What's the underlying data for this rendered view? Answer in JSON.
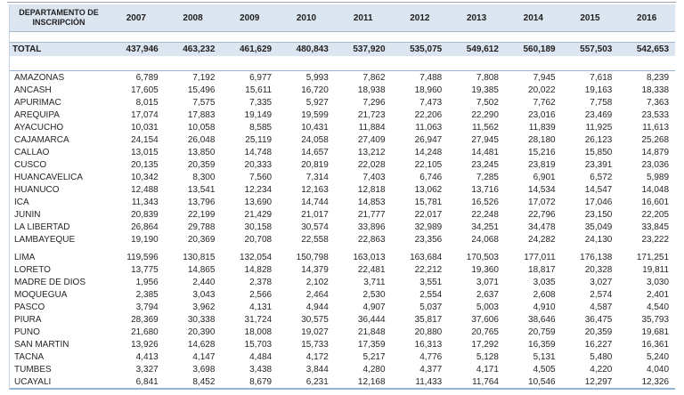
{
  "chart_data": {
    "type": "table",
    "row_header_label": "DEPARTAMENTO DE INSCRIPCIÓN",
    "columns": [
      "2007",
      "2008",
      "2009",
      "2010",
      "2011",
      "2012",
      "2013",
      "2014",
      "2015",
      "2016"
    ],
    "total": {
      "label": "TOTAL",
      "values": [
        "437,946",
        "463,232",
        "461,629",
        "480,843",
        "537,920",
        "535,075",
        "549,612",
        "560,189",
        "557,503",
        "542,653"
      ]
    },
    "rows": [
      {
        "name": "AMAZONAS",
        "values": [
          "6,789",
          "7,192",
          "6,977",
          "5,993",
          "7,862",
          "7,488",
          "7,808",
          "7,945",
          "7,618",
          "8,239"
        ]
      },
      {
        "name": "ÁNCASH",
        "values": [
          "17,605",
          "15,496",
          "15,611",
          "16,720",
          "18,938",
          "18,960",
          "19,385",
          "20,022",
          "19,163",
          "18,338"
        ]
      },
      {
        "name": "APURÍMAC",
        "values": [
          "8,015",
          "7,575",
          "7,335",
          "5,927",
          "7,296",
          "7,473",
          "7,502",
          "7,762",
          "7,758",
          "7,363"
        ]
      },
      {
        "name": "AREQUIPA",
        "values": [
          "17,074",
          "17,883",
          "19,149",
          "19,599",
          "21,723",
          "22,206",
          "22,290",
          "23,016",
          "23,469",
          "23,533"
        ]
      },
      {
        "name": "AYACUCHO",
        "values": [
          "10,031",
          "10,058",
          "8,585",
          "10,431",
          "11,884",
          "11,063",
          "11,562",
          "11,839",
          "11,925",
          "11,613"
        ]
      },
      {
        "name": "CAJAMARCA",
        "values": [
          "24,154",
          "26,048",
          "25,119",
          "24,058",
          "27,409",
          "26,947",
          "27,945",
          "28,180",
          "26,123",
          "25,268"
        ]
      },
      {
        "name": "CALLAO",
        "values": [
          "13,015",
          "13,850",
          "14,748",
          "14,657",
          "13,212",
          "14,248",
          "14,481",
          "15,216",
          "15,850",
          "14,879"
        ]
      },
      {
        "name": "CUSCO",
        "values": [
          "20,135",
          "20,359",
          "20,333",
          "20,819",
          "22,028",
          "22,105",
          "23,245",
          "23,819",
          "23,391",
          "23,036"
        ]
      },
      {
        "name": "HUANCAVELICA",
        "values": [
          "10,342",
          "8,300",
          "7,560",
          "7,314",
          "7,403",
          "6,746",
          "7,285",
          "6,901",
          "6,572",
          "5,989"
        ]
      },
      {
        "name": "HUÁNUCO",
        "values": [
          "12,488",
          "13,541",
          "12,234",
          "12,163",
          "12,818",
          "13,062",
          "13,716",
          "14,534",
          "14,547",
          "14,048"
        ]
      },
      {
        "name": "ICA",
        "values": [
          "11,343",
          "13,796",
          "13,690",
          "14,744",
          "14,853",
          "15,781",
          "16,526",
          "17,072",
          "17,046",
          "16,601"
        ]
      },
      {
        "name": "JUNÍN",
        "values": [
          "20,839",
          "22,199",
          "21,429",
          "21,017",
          "21,777",
          "22,017",
          "22,248",
          "22,796",
          "23,150",
          "22,205"
        ]
      },
      {
        "name": "LA LIBERTAD",
        "values": [
          "26,864",
          "29,788",
          "30,158",
          "30,574",
          "33,896",
          "32,989",
          "34,251",
          "34,478",
          "35,049",
          "33,845"
        ]
      },
      {
        "name": "LAMBAYEQUE",
        "values": [
          "19,190",
          "20,369",
          "20,708",
          "22,558",
          "22,863",
          "23,356",
          "24,068",
          "24,282",
          "24,130",
          "23,222"
        ]
      },
      {
        "name": "LIMA",
        "values": [
          "119,596",
          "130,815",
          "132,054",
          "150,798",
          "163,013",
          "163,684",
          "170,503",
          "177,011",
          "176,138",
          "171,251"
        ]
      },
      {
        "name": "LORETO",
        "values": [
          "13,775",
          "14,865",
          "14,828",
          "14,379",
          "22,481",
          "22,212",
          "19,360",
          "18,817",
          "20,328",
          "19,811"
        ]
      },
      {
        "name": "MADRE DE DIOS",
        "values": [
          "1,956",
          "2,440",
          "2,378",
          "2,102",
          "3,711",
          "3,551",
          "3,071",
          "3,035",
          "3,027",
          "3,030"
        ]
      },
      {
        "name": "MOQUEGUA",
        "values": [
          "2,385",
          "3,043",
          "2,566",
          "2,464",
          "2,530",
          "2,554",
          "2,637",
          "2,608",
          "2,574",
          "2,401"
        ]
      },
      {
        "name": "PASCO",
        "values": [
          "3,794",
          "3,962",
          "4,131",
          "4,944",
          "4,907",
          "5,037",
          "5,003",
          "4,910",
          "4,587",
          "4,540"
        ]
      },
      {
        "name": "PIURA",
        "values": [
          "28,369",
          "30,338",
          "31,724",
          "30,575",
          "36,444",
          "35,817",
          "37,606",
          "38,646",
          "36,475",
          "35,793"
        ]
      },
      {
        "name": "PUNO",
        "values": [
          "21,680",
          "20,390",
          "18,008",
          "19,027",
          "21,848",
          "20,880",
          "20,765",
          "20,759",
          "20,359",
          "19,681"
        ]
      },
      {
        "name": "SAN MARTÍN",
        "values": [
          "13,926",
          "14,628",
          "15,703",
          "15,733",
          "17,359",
          "16,313",
          "17,292",
          "16,359",
          "16,227",
          "16,361"
        ]
      },
      {
        "name": "TACNA",
        "values": [
          "4,413",
          "4,147",
          "4,484",
          "4,172",
          "5,217",
          "4,776",
          "5,128",
          "5,131",
          "5,480",
          "5,240"
        ]
      },
      {
        "name": "TUMBES",
        "values": [
          "3,327",
          "3,698",
          "3,438",
          "3,844",
          "4,280",
          "4,377",
          "4,171",
          "4,505",
          "4,220",
          "4,040"
        ]
      },
      {
        "name": "UCAYALI",
        "values": [
          "6,841",
          "8,452",
          "8,679",
          "6,231",
          "12,168",
          "11,433",
          "11,764",
          "10,546",
          "12,297",
          "12,326"
        ]
      }
    ],
    "group_break_before": "LIMA",
    "layout": {
      "grid": "horizontal-rules-only",
      "legend": "none"
    }
  },
  "colors": {
    "band_fill": "#dce6f1",
    "rule_blue": "#95b3d7",
    "rule_gray": "#a6b8cc",
    "text": "#262626"
  }
}
